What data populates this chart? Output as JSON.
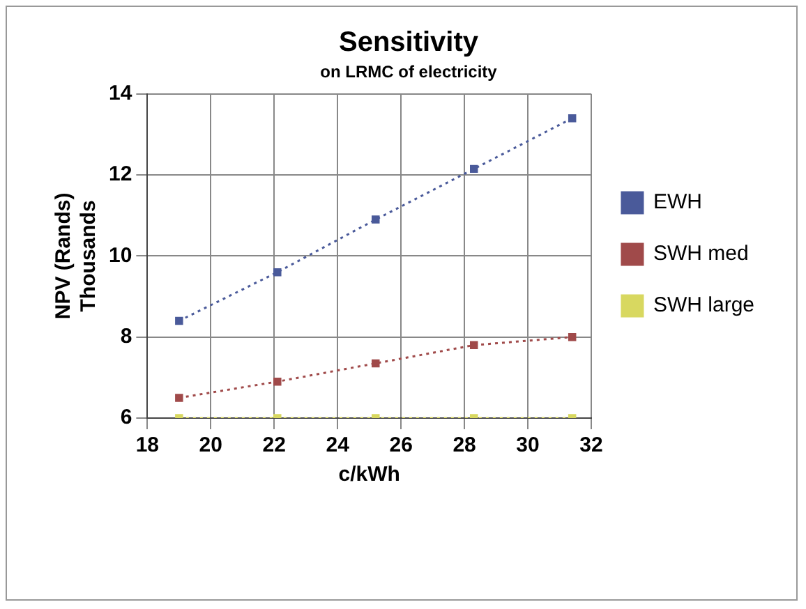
{
  "chart_data": {
    "type": "line",
    "title": "Sensitivity",
    "subtitle": "on LRMC of electricity",
    "xlabel": "c/kWh",
    "ylabel": "NPV (Rands)\nThousands",
    "x": [
      19,
      22.1,
      25.2,
      28.3,
      31.4
    ],
    "series": [
      {
        "name": "EWH",
        "color": "#4a5a9a",
        "values": [
          8.4,
          9.6,
          10.9,
          12.15,
          13.4
        ]
      },
      {
        "name": "SWH med",
        "color": "#a04a4a",
        "values": [
          6.5,
          6.9,
          7.35,
          7.8,
          8.0
        ]
      },
      {
        "name": "SWH large",
        "color": "#d8d860",
        "values": [
          6,
          6,
          6,
          6,
          6
        ]
      }
    ],
    "xlim": [
      18,
      32
    ],
    "xticks": [
      18,
      20,
      22,
      24,
      26,
      28,
      30,
      32
    ],
    "ylim": [
      6,
      14
    ],
    "yticks": [
      6,
      8,
      10,
      12,
      14
    ],
    "grid": true,
    "legend": "right",
    "marker": "square",
    "line_style": "dotted"
  }
}
